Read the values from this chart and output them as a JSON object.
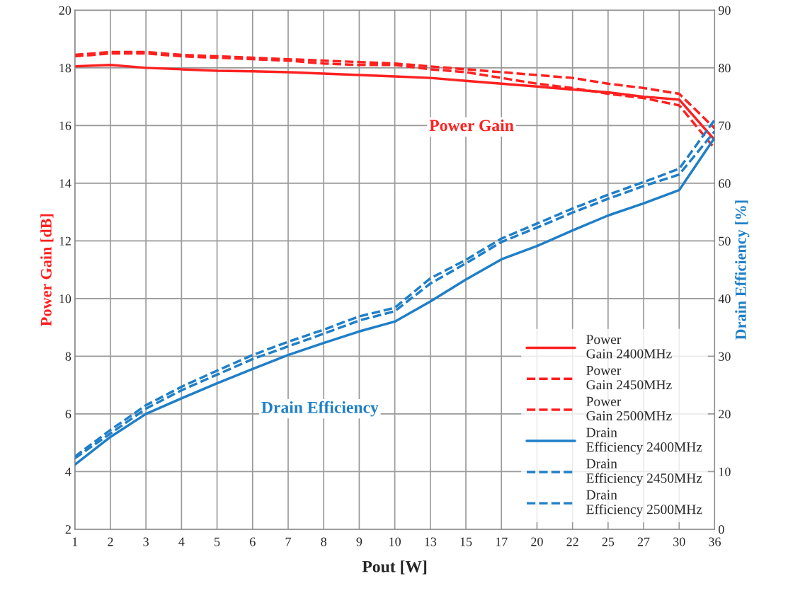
{
  "chart_data": {
    "type": "line",
    "categories": [
      "1",
      "2",
      "3",
      "4",
      "5",
      "6",
      "7",
      "8",
      "9",
      "10",
      "13",
      "15",
      "17",
      "20",
      "22",
      "25",
      "27",
      "30",
      "36"
    ],
    "xlabel": "Pout [W]",
    "ylabel": "Power Gain [dB]",
    "y2label": "Drain Efficiency [%]",
    "ylim": [
      2,
      20
    ],
    "yticks": [
      2,
      4,
      6,
      8,
      10,
      12,
      14,
      16,
      18,
      20
    ],
    "y2lim": [
      0,
      90
    ],
    "y2ticks": [
      0,
      10,
      20,
      30,
      40,
      50,
      60,
      70,
      80,
      90
    ],
    "grid": true,
    "legend": "bottom right",
    "annotations": [
      "Power Gain",
      "Drain Efficiency"
    ],
    "series": [
      {
        "name": "Power Gain 2400MHz",
        "color": "#ff2020",
        "line_style": "solid",
        "values": [
          18.05,
          18.1,
          18.0,
          17.95,
          17.9,
          17.88,
          17.85,
          17.8,
          17.75,
          17.7,
          17.65,
          17.55,
          17.45,
          17.35,
          17.25,
          17.15,
          17.0,
          16.9,
          15.5
        ]
      },
      {
        "name": "Power Gain 2450MHz",
        "color": "#ff2020",
        "line_style": "dashed",
        "values": [
          18.45,
          18.55,
          18.55,
          18.45,
          18.4,
          18.35,
          18.3,
          18.25,
          18.2,
          18.15,
          18.05,
          17.95,
          17.85,
          17.75,
          17.65,
          17.45,
          17.3,
          17.1,
          15.9
        ]
      },
      {
        "name": "Power Gain 2500MHz",
        "color": "#ff2020",
        "line_style": "dashed",
        "values": [
          18.4,
          18.5,
          18.5,
          18.4,
          18.35,
          18.3,
          18.25,
          18.15,
          18.1,
          18.1,
          17.95,
          17.85,
          17.65,
          17.45,
          17.3,
          17.1,
          16.95,
          16.7,
          15.2
        ]
      },
      {
        "name": "Drain Efficiency 2400MHz",
        "color": "#1f7fc8",
        "line_style": "solid",
        "axis": "y2",
        "values": [
          11.2,
          16.0,
          20.0,
          22.7,
          25.3,
          27.8,
          30.2,
          32.3,
          34.3,
          36.0,
          39.5,
          43.3,
          46.8,
          49.1,
          51.8,
          54.4,
          56.5,
          58.8,
          67.9
        ]
      },
      {
        "name": "Drain Efficiency 2450MHz",
        "color": "#1f7fc8",
        "line_style": "dashed",
        "axis": "y2",
        "values": [
          12.3,
          16.6,
          20.9,
          24.1,
          26.8,
          29.5,
          31.7,
          33.9,
          36.2,
          37.8,
          42.6,
          46.1,
          49.8,
          52.3,
          54.9,
          57.3,
          59.5,
          61.5,
          69.0
        ]
      },
      {
        "name": "Drain Efficiency 2500MHz",
        "color": "#1f7fc8",
        "line_style": "dashed",
        "axis": "y2",
        "values": [
          12.6,
          17.2,
          21.5,
          24.7,
          27.5,
          30.2,
          32.5,
          34.6,
          36.9,
          38.4,
          43.5,
          46.7,
          50.4,
          53.0,
          55.6,
          58.0,
          60.2,
          62.5,
          71.0
        ]
      }
    ]
  }
}
